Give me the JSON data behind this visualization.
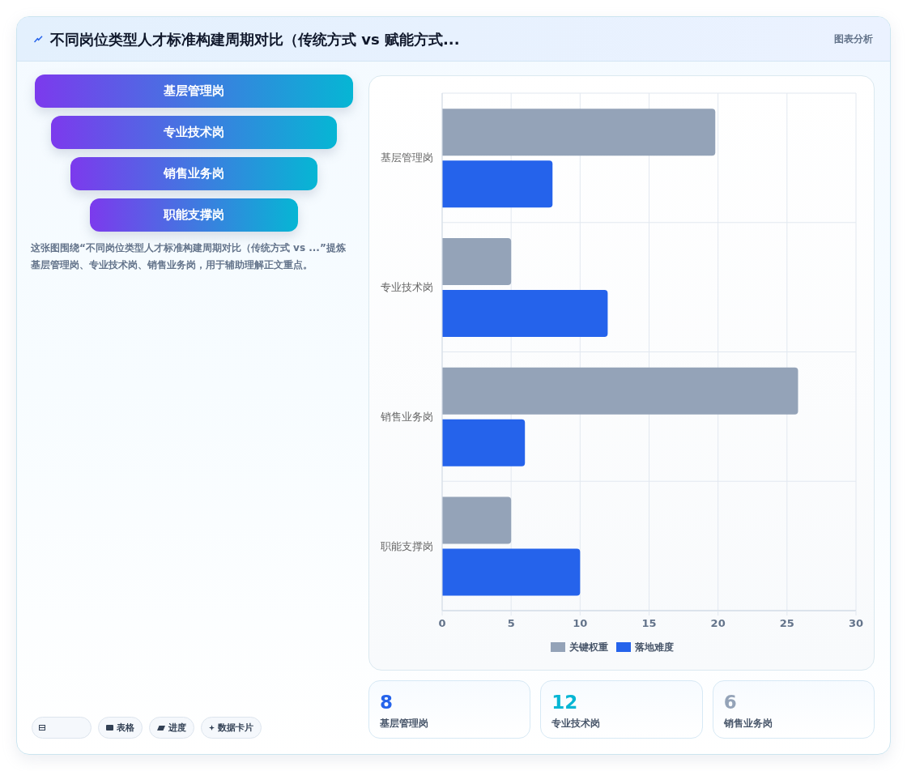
{
  "chart_data": [
    {
      "type": "other",
      "title": "不同岗位类型人才标准构建周期对比（传统方式 vs 赋能方式...",
      "annotations": [
        "图表分析"
      ]
    },
    {
      "type": "other",
      "categories": [
        "基层管理岗",
        "专业技术岗",
        "销售业务岗",
        "职能支撑岗"
      ],
      "annotations": [
        "这张图围绕“不同岗位类型人才标准构建周期对比（传统方式 vs ...”提炼基层管理岗、专业技术岗、销售业务岗，用于辅助理解正文重点。",
        "表格",
        "进度",
        "数据卡片"
      ]
    },
    {
      "type": "bar",
      "orientation": "horizontal",
      "categories": [
        "基层管理岗",
        "专业技术岗",
        "销售业务岗",
        "职能支撑岗"
      ],
      "series": [
        {
          "name": "关键权重",
          "color": "#94a3b8",
          "values": [
            19.8,
            5,
            25.8,
            5
          ]
        },
        {
          "name": "落地难度",
          "color": "#2563eb",
          "values": [
            8,
            12,
            6,
            10
          ]
        }
      ],
      "xlim": [
        0,
        30
      ],
      "xticks": [
        0,
        5,
        10,
        15,
        20,
        25,
        30
      ],
      "grid": true,
      "legend": "bottom"
    },
    {
      "type": "other",
      "categories": [
        "基层管理岗",
        "专业技术岗",
        "销售业务岗"
      ],
      "values": [
        8,
        12,
        6
      ],
      "data_labels": true
    }
  ]
}
